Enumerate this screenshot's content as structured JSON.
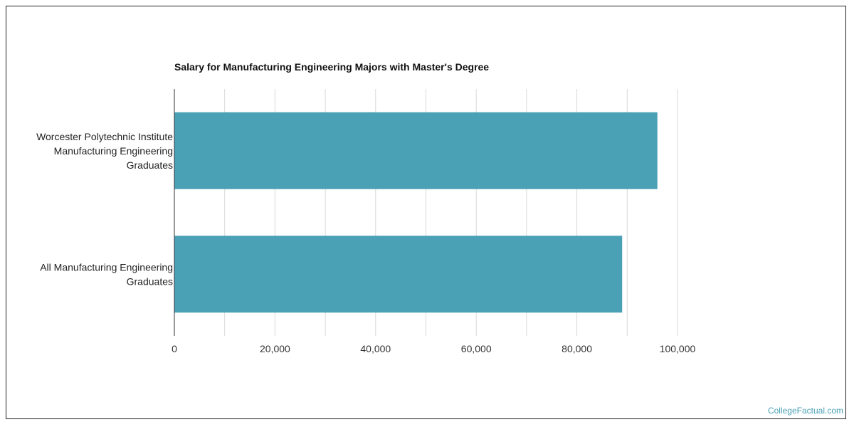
{
  "chart_data": {
    "type": "bar",
    "orientation": "horizontal",
    "title": "Salary for Manufacturing Engineering Majors with Master's Degree",
    "categories": [
      [
        "Worcester Polytechnic Institute",
        "Manufacturing Engineering",
        "Graduates"
      ],
      [
        "All Manufacturing Engineering",
        "Graduates"
      ]
    ],
    "series": [
      {
        "values": [
          96000,
          89000
        ],
        "color": "#4aa0b5"
      }
    ],
    "xlabel": "",
    "ylabel": "",
    "xlim": [
      0,
      120000
    ],
    "xticks": [
      0,
      20000,
      40000,
      60000,
      80000,
      100000
    ],
    "xtick_labels": [
      "0",
      "20,000",
      "40,000",
      "60,000",
      "80,000",
      "100,000"
    ],
    "grid": true,
    "legend": "none"
  },
  "footer": {
    "credit": "CollegeFactual.com"
  },
  "colors": {
    "bar": "#4aa0b5",
    "grid": "#d9d9d9",
    "axis": "#333333",
    "credit": "#4aa0b5"
  }
}
